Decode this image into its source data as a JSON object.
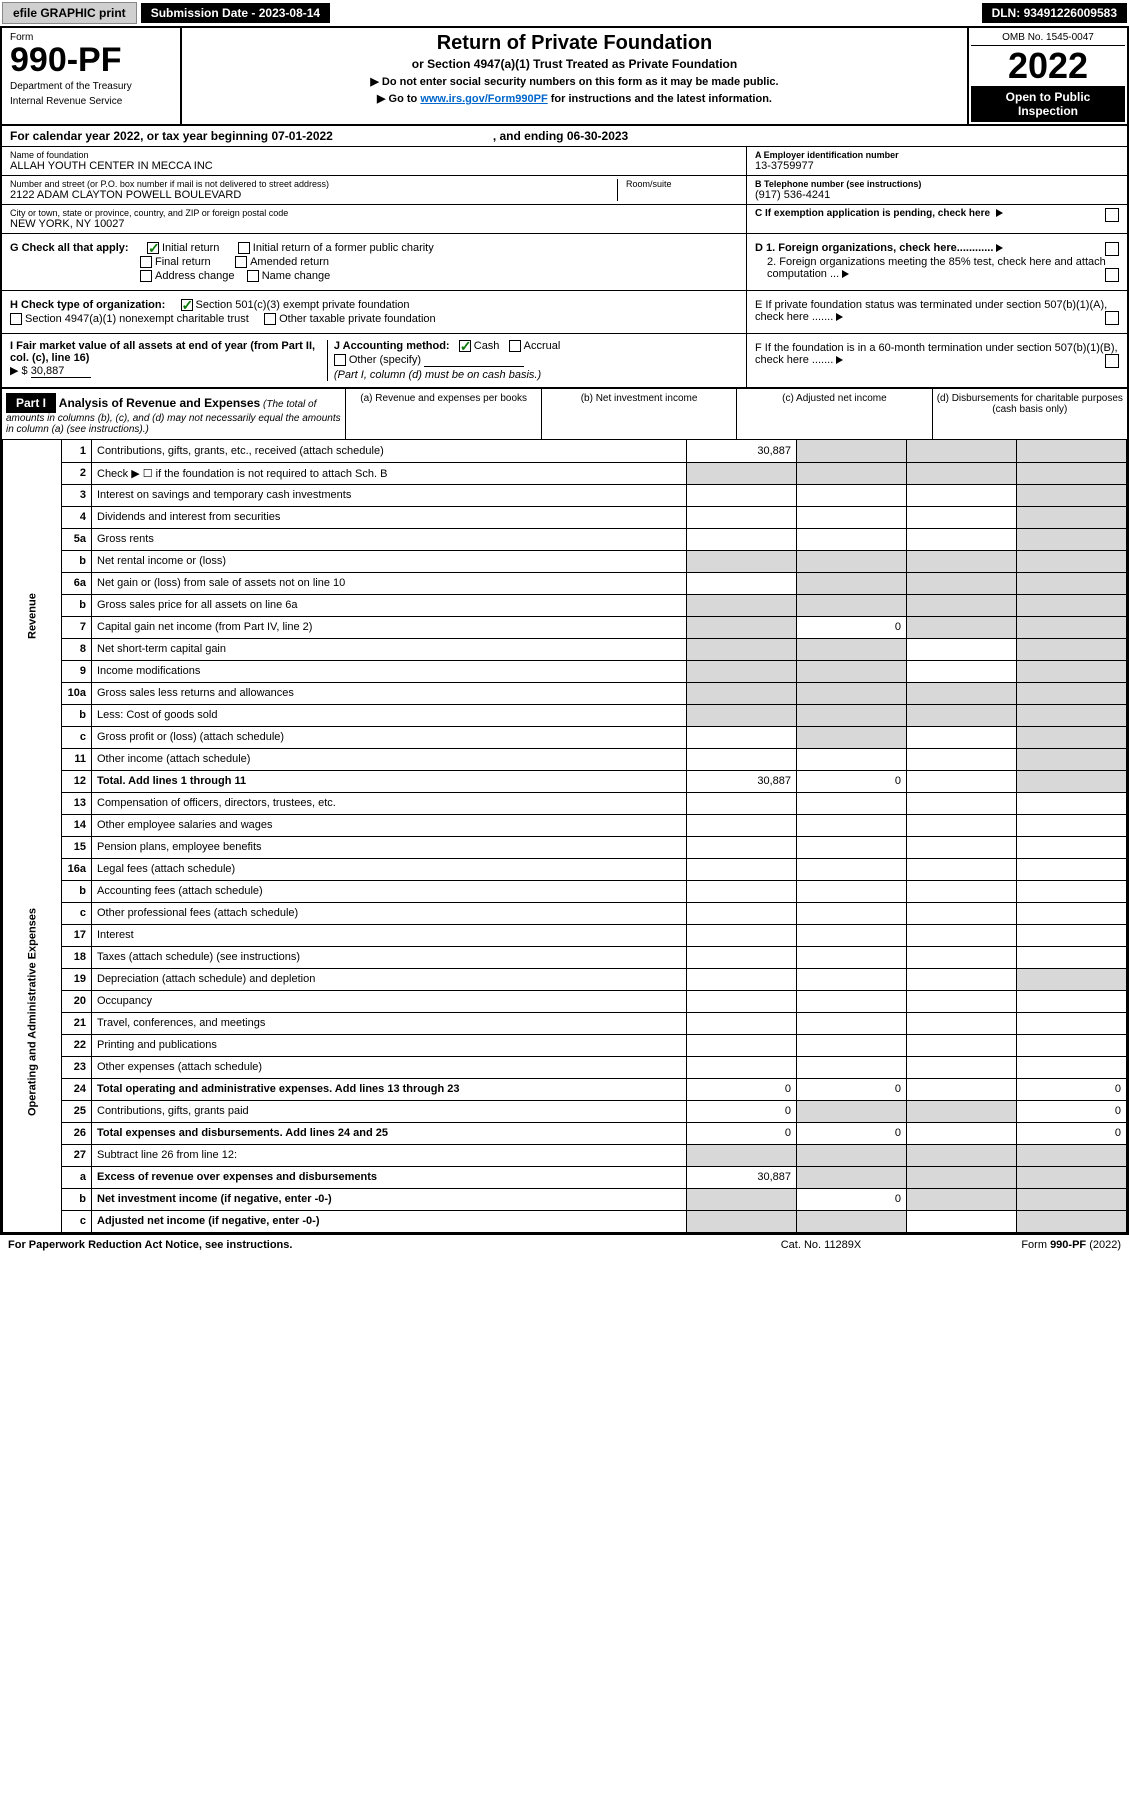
{
  "topbar": {
    "efile": "efile GRAPHIC print",
    "subdate_label": "Submission Date - ",
    "subdate": "2023-08-14",
    "dln_label": "DLN: ",
    "dln": "93491226009583"
  },
  "header": {
    "form_word": "Form",
    "form_number": "990-PF",
    "dept": "Department of the Treasury",
    "irs": "Internal Revenue Service",
    "title": "Return of Private Foundation",
    "subtitle": "or Section 4947(a)(1) Trust Treated as Private Foundation",
    "note1": "▶ Do not enter social security numbers on this form as it may be made public.",
    "note2_pre": "▶ Go to ",
    "note2_link": "www.irs.gov/Form990PF",
    "note2_post": " for instructions and the latest information.",
    "omb": "OMB No. 1545-0047",
    "year": "2022",
    "inspection": "Open to Public Inspection"
  },
  "calendar": {
    "pre": "For calendar year 2022, or tax year beginning ",
    "begin": "07-01-2022",
    "mid": ", and ending ",
    "end": "06-30-2023"
  },
  "entity": {
    "name_label": "Name of foundation",
    "name": "ALLAH YOUTH CENTER IN MECCA INC",
    "addr_label": "Number and street (or P.O. box number if mail is not delivered to street address)",
    "addr": "2122 ADAM CLAYTON POWELL BOULEVARD",
    "room_label": "Room/suite",
    "city_label": "City or town, state or province, country, and ZIP or foreign postal code",
    "city": "NEW YORK, NY  10027",
    "ein_label": "A Employer identification number",
    "ein": "13-3759977",
    "phone_label": "B Telephone number (see instructions)",
    "phone": "(917) 536-4241",
    "c_label": "C If exemption application is pending, check here"
  },
  "checks": {
    "g_label": "G Check all that apply:",
    "initial": "Initial return",
    "initial_former": "Initial return of a former public charity",
    "final": "Final return",
    "amended": "Amended return",
    "addr_change": "Address change",
    "name_change": "Name change",
    "h_label": "H Check type of organization:",
    "h_501c3": "Section 501(c)(3) exempt private foundation",
    "h_4947": "Section 4947(a)(1) nonexempt charitable trust",
    "h_other_tax": "Other taxable private foundation",
    "i_label": "I Fair market value of all assets at end of year (from Part II, col. (c), line 16)",
    "i_prefix": "▶ $",
    "i_value": "30,887",
    "j_label": "J Accounting method:",
    "j_cash": "Cash",
    "j_accrual": "Accrual",
    "j_other": "Other (specify)",
    "j_note": "(Part I, column (d) must be on cash basis.)",
    "d1": "D 1. Foreign organizations, check here............",
    "d2": "2. Foreign organizations meeting the 85% test, check here and attach computation ...",
    "e": "E  If private foundation status was terminated under section 507(b)(1)(A), check here .......",
    "f": "F  If the foundation is in a 60-month termination under section 507(b)(1)(B), check here ......."
  },
  "part1": {
    "label": "Part I",
    "title": "Analysis of Revenue and Expenses",
    "title_note": "(The total of amounts in columns (b), (c), and (d) may not necessarily equal the amounts in column (a) (see instructions).)",
    "col_a": "(a)   Revenue and expenses per books",
    "col_b": "(b)   Net investment income",
    "col_c": "(c)   Adjusted net income",
    "col_d": "(d)  Disbursements for charitable purposes (cash basis only)"
  },
  "sections": {
    "revenue": "Revenue",
    "expenses": "Operating and Administrative Expenses"
  },
  "rows": [
    {
      "n": "1",
      "d": "",
      "a": "30,887",
      "b": "",
      "c": "",
      "grey": [
        "b",
        "c",
        "d"
      ]
    },
    {
      "n": "2",
      "d": "",
      "a": "",
      "b": "",
      "c": "",
      "grey": [
        "a",
        "b",
        "c",
        "d"
      ],
      "bold_not": true
    },
    {
      "n": "3",
      "d": "",
      "a": "",
      "b": "",
      "c": "",
      "grey": [
        "d"
      ]
    },
    {
      "n": "4",
      "d": "",
      "a": "",
      "b": "",
      "c": "",
      "grey": [
        "d"
      ]
    },
    {
      "n": "5a",
      "d": "",
      "a": "",
      "b": "",
      "c": "",
      "grey": [
        "d"
      ]
    },
    {
      "n": "b",
      "d": "",
      "a": "",
      "b": "",
      "c": "",
      "grey": [
        "a",
        "b",
        "c",
        "d"
      ]
    },
    {
      "n": "6a",
      "d": "",
      "a": "",
      "b": "",
      "c": "",
      "grey": [
        "b",
        "c",
        "d"
      ]
    },
    {
      "n": "b",
      "d": "",
      "a": "",
      "b": "",
      "c": "",
      "grey": [
        "a",
        "b",
        "c",
        "d"
      ]
    },
    {
      "n": "7",
      "d": "",
      "a": "",
      "b": "0",
      "c": "",
      "grey": [
        "a",
        "c",
        "d"
      ]
    },
    {
      "n": "8",
      "d": "",
      "a": "",
      "b": "",
      "c": "",
      "grey": [
        "a",
        "b",
        "d"
      ]
    },
    {
      "n": "9",
      "d": "",
      "a": "",
      "b": "",
      "c": "",
      "grey": [
        "a",
        "b",
        "d"
      ]
    },
    {
      "n": "10a",
      "d": "",
      "a": "",
      "b": "",
      "c": "",
      "grey": [
        "a",
        "b",
        "c",
        "d"
      ]
    },
    {
      "n": "b",
      "d": "",
      "a": "",
      "b": "",
      "c": "",
      "grey": [
        "a",
        "b",
        "c",
        "d"
      ]
    },
    {
      "n": "c",
      "d": "",
      "a": "",
      "b": "",
      "c": "",
      "grey": [
        "b",
        "d"
      ]
    },
    {
      "n": "11",
      "d": "",
      "a": "",
      "b": "",
      "c": "",
      "grey": [
        "d"
      ]
    },
    {
      "n": "12",
      "d": "",
      "a": "30,887",
      "b": "0",
      "c": "",
      "grey": [
        "d"
      ],
      "bold": true
    }
  ],
  "exp_rows": [
    {
      "n": "13",
      "d": "",
      "a": "",
      "b": "",
      "c": ""
    },
    {
      "n": "14",
      "d": "",
      "a": "",
      "b": "",
      "c": ""
    },
    {
      "n": "15",
      "d": "",
      "a": "",
      "b": "",
      "c": ""
    },
    {
      "n": "16a",
      "d": "",
      "a": "",
      "b": "",
      "c": ""
    },
    {
      "n": "b",
      "d": "",
      "a": "",
      "b": "",
      "c": ""
    },
    {
      "n": "c",
      "d": "",
      "a": "",
      "b": "",
      "c": ""
    },
    {
      "n": "17",
      "d": "",
      "a": "",
      "b": "",
      "c": ""
    },
    {
      "n": "18",
      "d": "",
      "a": "",
      "b": "",
      "c": ""
    },
    {
      "n": "19",
      "d": "",
      "a": "",
      "b": "",
      "c": "",
      "grey": [
        "d"
      ]
    },
    {
      "n": "20",
      "d": "",
      "a": "",
      "b": "",
      "c": ""
    },
    {
      "n": "21",
      "d": "",
      "a": "",
      "b": "",
      "c": ""
    },
    {
      "n": "22",
      "d": "",
      "a": "",
      "b": "",
      "c": ""
    },
    {
      "n": "23",
      "d": "",
      "a": "",
      "b": "",
      "c": ""
    },
    {
      "n": "24",
      "d": "0",
      "a": "0",
      "b": "0",
      "c": "",
      "bold": true
    },
    {
      "n": "25",
      "d": "0",
      "a": "0",
      "b": "",
      "c": "",
      "grey": [
        "b",
        "c"
      ]
    },
    {
      "n": "26",
      "d": "0",
      "a": "0",
      "b": "0",
      "c": "",
      "bold": true
    },
    {
      "n": "27",
      "d": "",
      "a": "",
      "b": "",
      "c": "",
      "grey": [
        "a",
        "b",
        "c",
        "d"
      ]
    },
    {
      "n": "a",
      "d": "",
      "a": "30,887",
      "b": "",
      "c": "",
      "grey": [
        "b",
        "c",
        "d"
      ],
      "bold": true
    },
    {
      "n": "b",
      "d": "",
      "a": "",
      "b": "0",
      "c": "",
      "grey": [
        "a",
        "c",
        "d"
      ],
      "bold": true
    },
    {
      "n": "c",
      "d": "",
      "a": "",
      "b": "",
      "c": "",
      "grey": [
        "a",
        "b",
        "d"
      ],
      "bold": true
    }
  ],
  "footer": {
    "left": "For Paperwork Reduction Act Notice, see instructions.",
    "mid": "Cat. No. 11289X",
    "right": "Form 990-PF (2022)"
  },
  "colors": {
    "grey": "#d8d8d8",
    "link": "#0066cc",
    "check": "#0a7a0a"
  }
}
